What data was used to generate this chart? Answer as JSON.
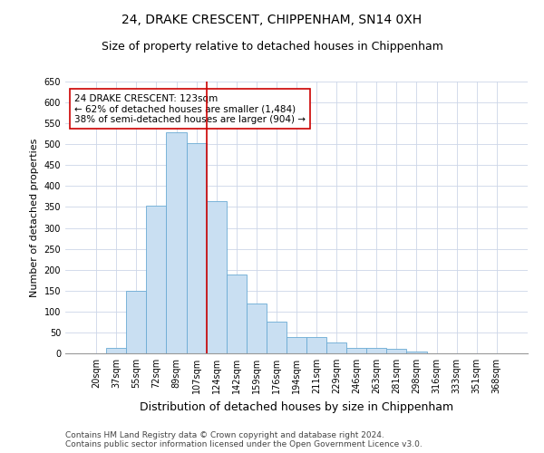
{
  "title": "24, DRAKE CRESCENT, CHIPPENHAM, SN14 0XH",
  "subtitle": "Size of property relative to detached houses in Chippenham",
  "xlabel": "Distribution of detached houses by size in Chippenham",
  "ylabel": "Number of detached properties",
  "bar_color": "#c9dff2",
  "bar_edge_color": "#6aaad4",
  "categories": [
    "20sqm",
    "37sqm",
    "55sqm",
    "72sqm",
    "89sqm",
    "107sqm",
    "124sqm",
    "142sqm",
    "159sqm",
    "176sqm",
    "194sqm",
    "211sqm",
    "229sqm",
    "246sqm",
    "263sqm",
    "281sqm",
    "298sqm",
    "316sqm",
    "333sqm",
    "351sqm",
    "368sqm"
  ],
  "values": [
    0,
    13,
    150,
    353,
    528,
    502,
    365,
    188,
    120,
    75,
    40,
    38,
    25,
    12,
    12,
    10,
    5,
    0,
    0,
    0,
    0
  ],
  "vline_index": 6,
  "vline_label": "24 DRAKE CRESCENT: 123sqm",
  "annotation_line1": "← 62% of detached houses are smaller (1,484)",
  "annotation_line2": "38% of semi-detached houses are larger (904) →",
  "ylim": [
    0,
    650
  ],
  "yticks": [
    0,
    50,
    100,
    150,
    200,
    250,
    300,
    350,
    400,
    450,
    500,
    550,
    600,
    650
  ],
  "footer1": "Contains HM Land Registry data © Crown copyright and database right 2024.",
  "footer2": "Contains public sector information licensed under the Open Government Licence v3.0.",
  "background_color": "#ffffff",
  "grid_color": "#ccd6e8",
  "vline_color": "#cc0000",
  "annotation_box_color": "#ffffff",
  "annotation_box_edge": "#cc0000",
  "title_fontsize": 10,
  "subtitle_fontsize": 9,
  "ylabel_fontsize": 8,
  "xlabel_fontsize": 9,
  "tick_fontsize": 7,
  "annotation_fontsize": 7.5,
  "footer_fontsize": 6.5
}
